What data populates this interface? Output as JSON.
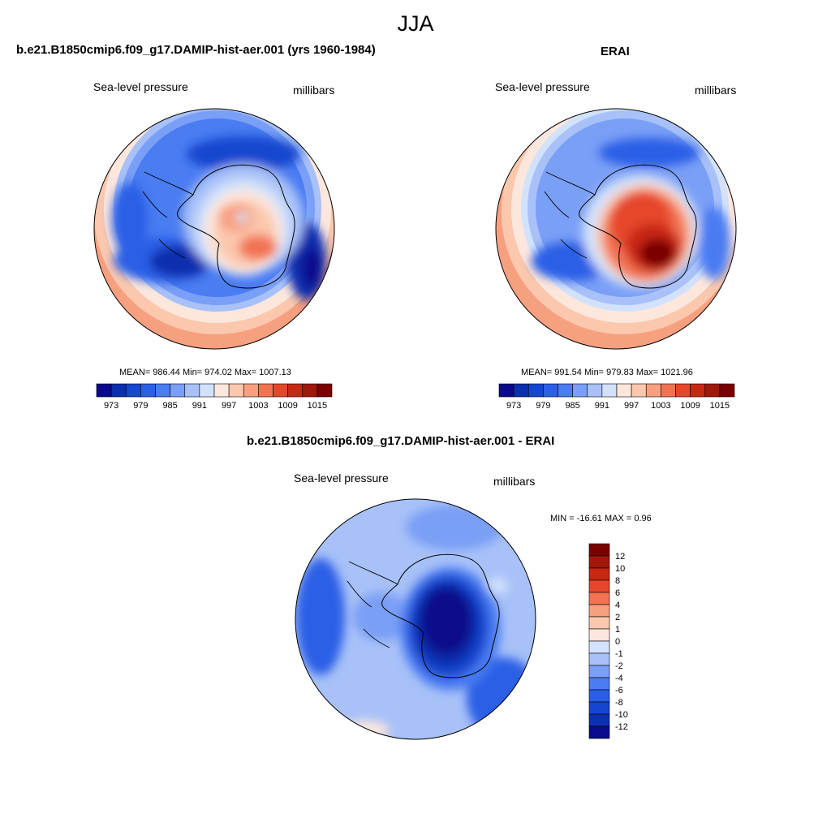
{
  "figure_title": "JJA",
  "panels": {
    "model": {
      "title": "b.e21.B1850cmip6.f09_g17.DAMIP-hist-aer.001 (yrs 1960-1984)",
      "variable": "Sea-level pressure",
      "units": "millibars",
      "stats": "MEAN= 986.44  Min= 974.02  Max= 1007.13"
    },
    "obs": {
      "title": "ERAI",
      "variable": "Sea-level pressure",
      "units": "millibars",
      "stats": "MEAN= 991.54  Min= 979.83  Max= 1021.96"
    },
    "diff": {
      "title": "b.e21.B1850cmip6.f09_g17.DAMIP-hist-aer.001 - ERAI",
      "variable": "Sea-level pressure",
      "units": "millibars",
      "stats": "MIN = -16.61 MAX =   0.96"
    }
  },
  "chart_data": [
    {
      "type": "heatmap",
      "projection": "south-polar-stereographic",
      "title": "b.e21.B1850cmip6.f09_g17.DAMIP-hist-aer.001 (yrs 1960-1984)",
      "variable": "Sea-level pressure",
      "units": "millibars",
      "mean": 986.44,
      "min": 974.02,
      "max": 1007.13,
      "colorbar": {
        "orientation": "horizontal",
        "levels": [
          973,
          976,
          979,
          982,
          985,
          988,
          991,
          994,
          997,
          1000,
          1003,
          1006,
          1009,
          1012,
          1015
        ],
        "tick_labels": [
          "973",
          "979",
          "985",
          "991",
          "997",
          "1003",
          "1009",
          "1015"
        ]
      }
    },
    {
      "type": "heatmap",
      "projection": "south-polar-stereographic",
      "title": "ERAI",
      "variable": "Sea-level pressure",
      "units": "millibars",
      "mean": 991.54,
      "min": 979.83,
      "max": 1021.96,
      "colorbar": {
        "orientation": "horizontal",
        "levels": [
          973,
          976,
          979,
          982,
          985,
          988,
          991,
          994,
          997,
          1000,
          1003,
          1006,
          1009,
          1012,
          1015
        ],
        "tick_labels": [
          "973",
          "979",
          "985",
          "991",
          "997",
          "1003",
          "1009",
          "1015"
        ]
      }
    },
    {
      "type": "heatmap",
      "projection": "south-polar-stereographic",
      "title": "b.e21.B1850cmip6.f09_g17.DAMIP-hist-aer.001 - ERAI",
      "variable": "Sea-level pressure",
      "units": "millibars",
      "min": -16.61,
      "max": 0.96,
      "colorbar": {
        "orientation": "vertical",
        "levels": [
          -12,
          -10,
          -8,
          -6,
          -4,
          -2,
          -1,
          0,
          1,
          2,
          4,
          6,
          8,
          10,
          12
        ],
        "tick_labels": [
          "12",
          "10",
          "8",
          "6",
          "4",
          "2",
          "1",
          "0",
          "-1",
          "-2",
          "-4",
          "-6",
          "-8",
          "-10",
          "-12"
        ]
      }
    }
  ],
  "colors": {
    "palette": [
      "#0a0a8c",
      "#0b2fae",
      "#1546cf",
      "#2a5fe6",
      "#4a7cf2",
      "#7a9ff6",
      "#a8c1f8",
      "#d3e2fb",
      "#fde7dd",
      "#fbc8ae",
      "#f7a080",
      "#f27352",
      "#e6472a",
      "#c82812",
      "#a0180a",
      "#7a0000"
    ],
    "coastline": "#000000"
  }
}
